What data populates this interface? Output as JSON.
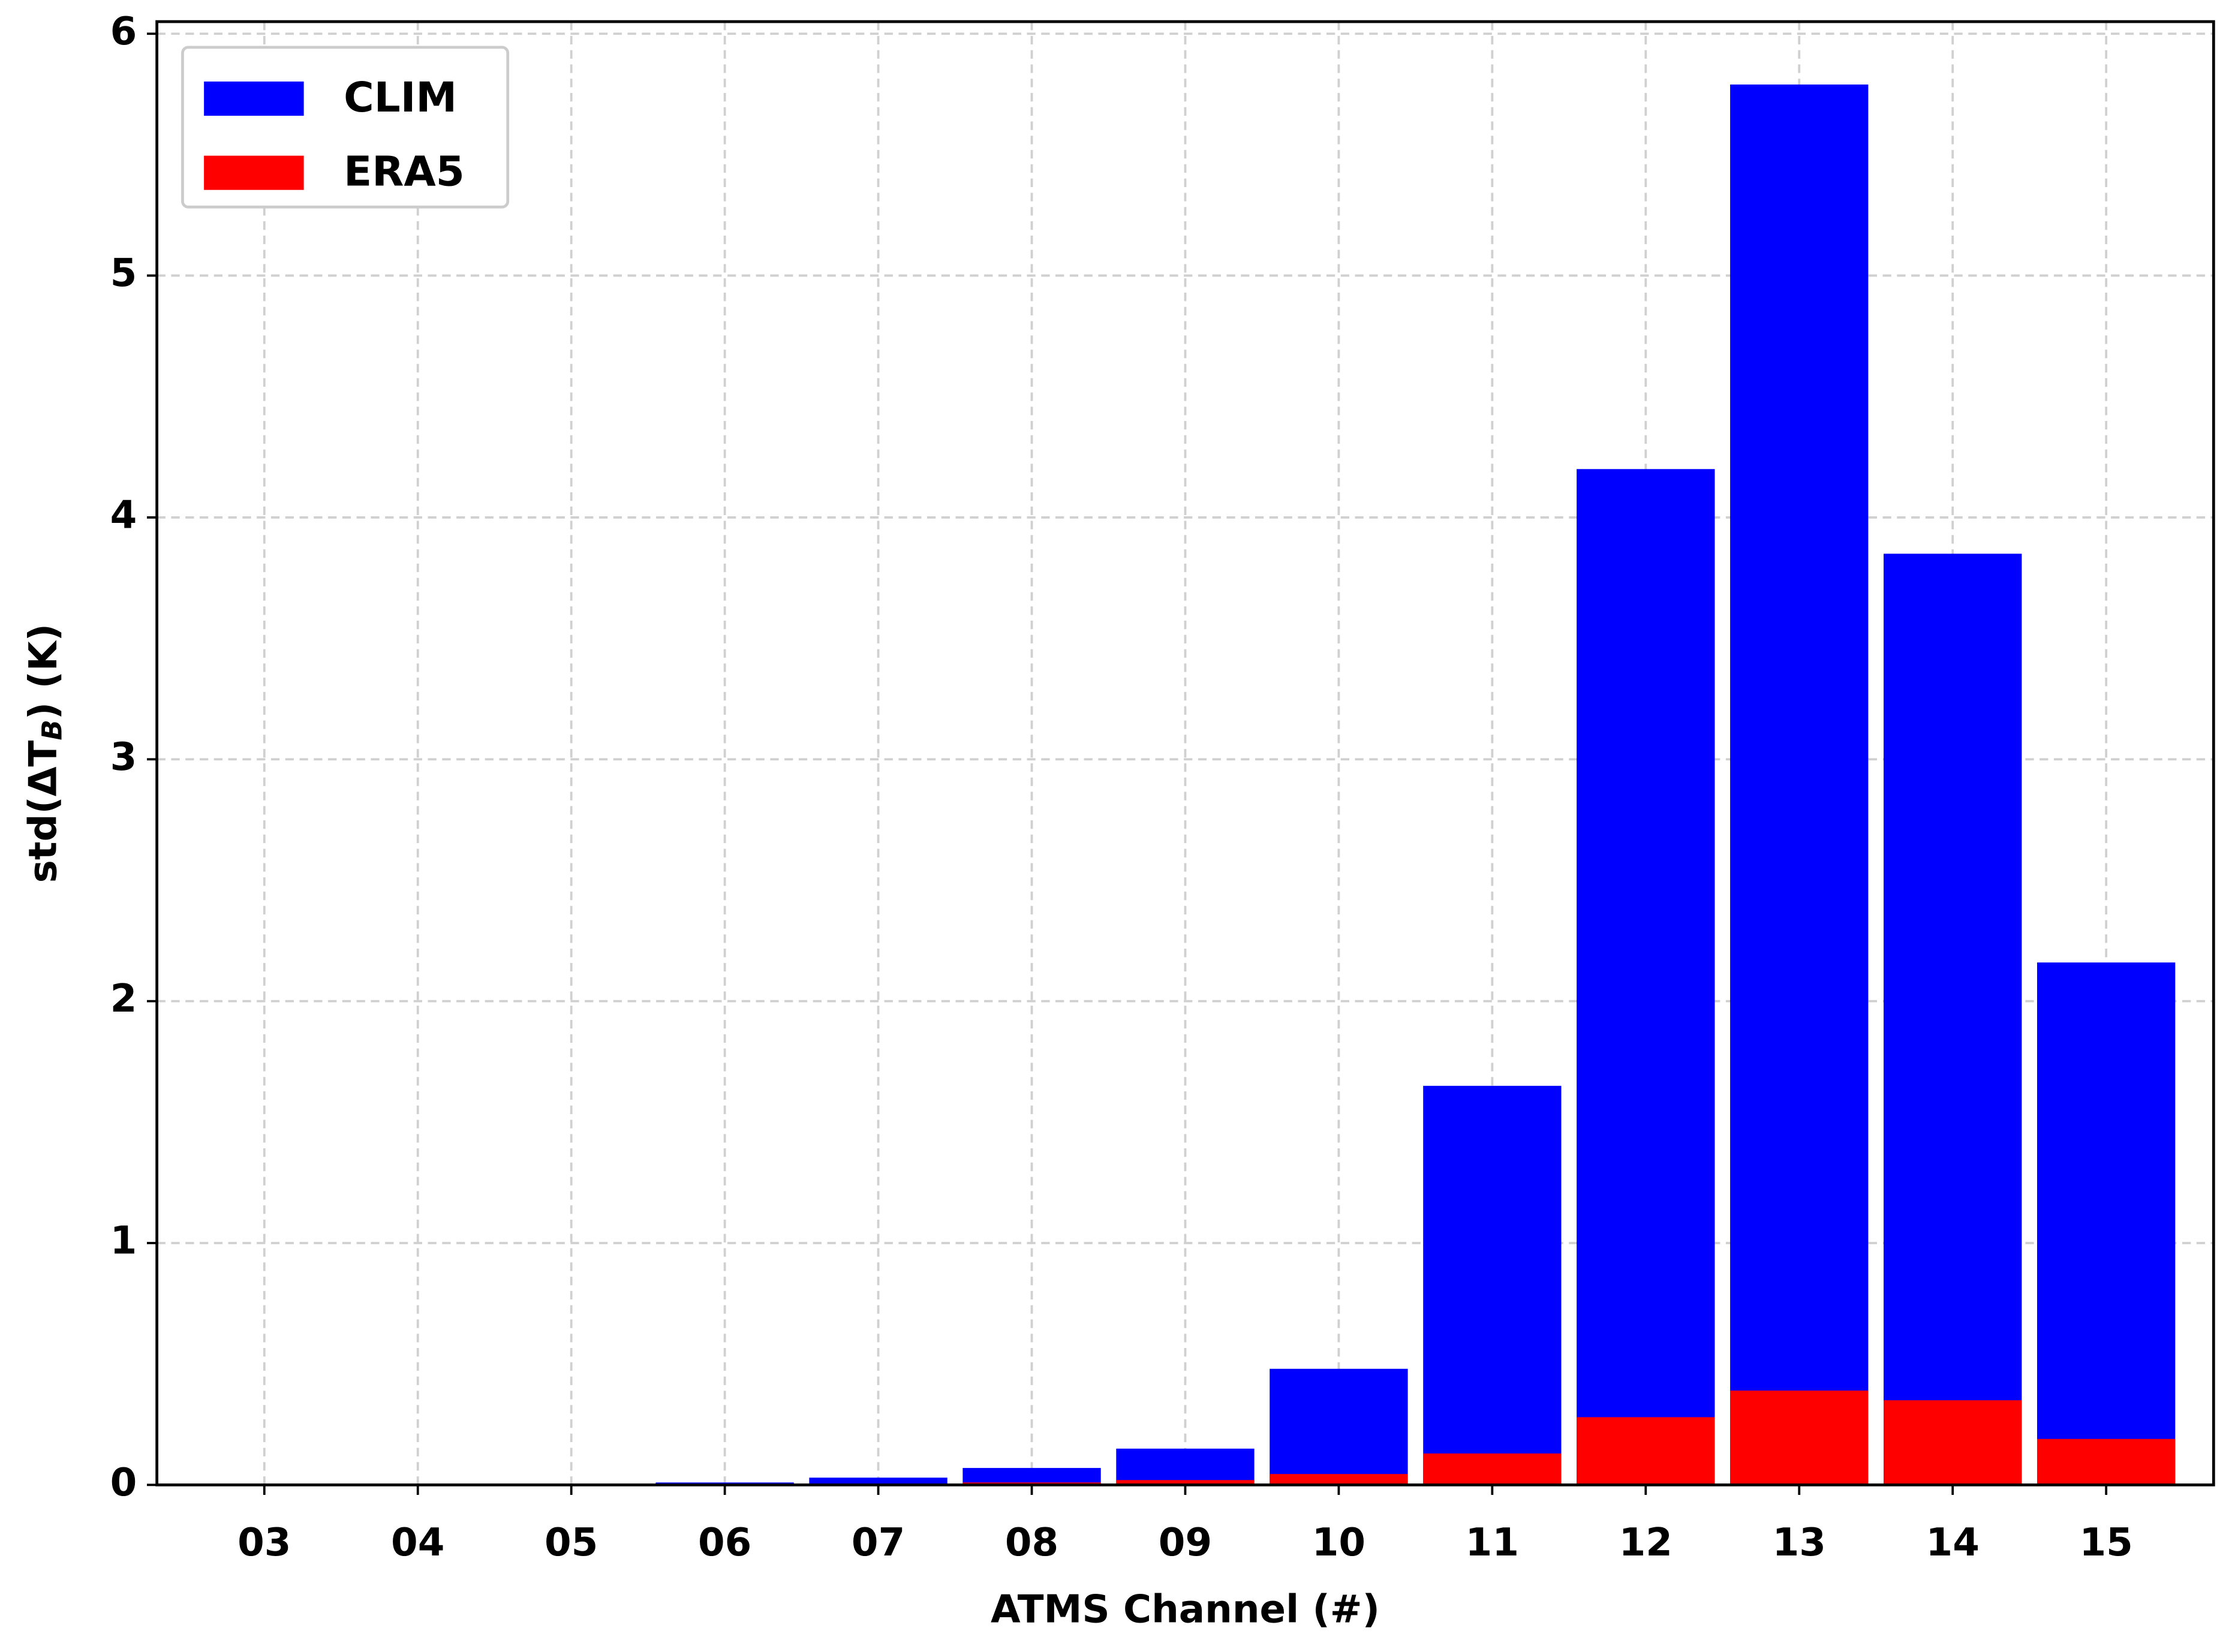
{
  "chart_data": {
    "type": "bar",
    "bar_mode": "overlay",
    "xlabel": "ATMS Channel (#)",
    "ylabel": "std(ΔT_B) (K)",
    "categories": [
      "03",
      "04",
      "05",
      "06",
      "07",
      "08",
      "09",
      "10",
      "11",
      "12",
      "13",
      "14",
      "15"
    ],
    "series": [
      {
        "name": "CLIM",
        "color": "#0000ff",
        "values": [
          0,
          0,
          0.003,
          0.01,
          0.03,
          0.07,
          0.15,
          0.48,
          1.65,
          4.2,
          5.79,
          3.85,
          2.16
        ]
      },
      {
        "name": "ERA5",
        "color": "#ff0000",
        "values": [
          0,
          0,
          0,
          0.002,
          0.005,
          0.01,
          0.02,
          0.045,
          0.13,
          0.28,
          0.39,
          0.35,
          0.19
        ]
      }
    ],
    "ylim": [
      0,
      6.05
    ],
    "yticks": [
      0,
      1,
      2,
      3,
      4,
      5,
      6
    ],
    "grid": true,
    "legend": "upper left"
  }
}
